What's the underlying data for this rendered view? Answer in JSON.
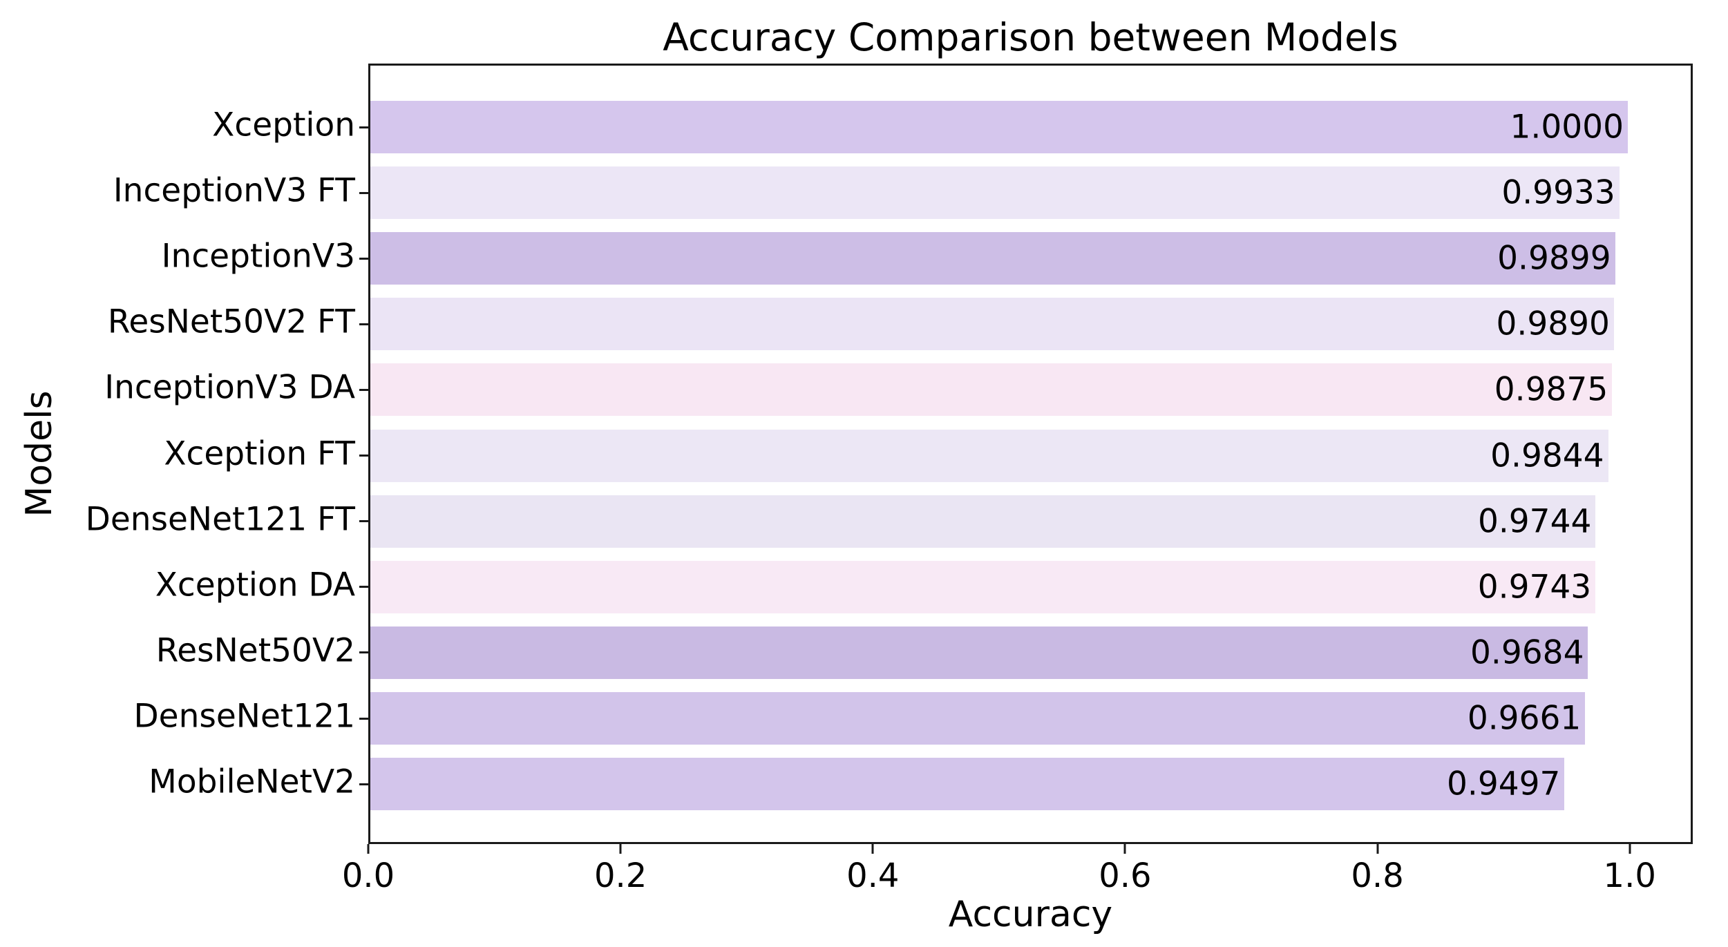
{
  "chart_data": {
    "type": "bar",
    "orientation": "horizontal",
    "title": "Accuracy Comparison between Models",
    "xlabel": "Accuracy",
    "ylabel": "Models",
    "categories": [
      "Xception",
      "InceptionV3 FT",
      "InceptionV3",
      "ResNet50V2 FT",
      "InceptionV3 DA",
      "Xception FT",
      "DenseNet121 FT",
      "Xception DA",
      "ResNet50V2",
      "DenseNet121",
      "MobileNetV2"
    ],
    "values": [
      1.0,
      0.9933,
      0.9899,
      0.989,
      0.9875,
      0.9844,
      0.9744,
      0.9743,
      0.9684,
      0.9661,
      0.9497
    ],
    "value_labels": [
      "1.0000",
      "0.9933",
      "0.9899",
      "0.9890",
      "0.9875",
      "0.9844",
      "0.9744",
      "0.9743",
      "0.9684",
      "0.9661",
      "0.9497"
    ],
    "bar_colors": [
      "#d5c6ed",
      "#ece6f6",
      "#cdbee6",
      "#ebe4f5",
      "#f8e7f3",
      "#ece7f5",
      "#eae5f3",
      "#f8e9f5",
      "#c9bae3",
      "#d2c4ea",
      "#d3c5eb"
    ],
    "xlim": [
      0,
      1.05
    ],
    "xticks": [
      0.0,
      0.2,
      0.4,
      0.6,
      0.8,
      1.0
    ],
    "xtick_labels": [
      "0.0",
      "0.2",
      "0.4",
      "0.6",
      "0.8",
      "1.0"
    ],
    "grid": false,
    "legend": false,
    "axis_color": "#1a1a1a",
    "text_color": "#000000",
    "background_color": "#ffffff"
  }
}
